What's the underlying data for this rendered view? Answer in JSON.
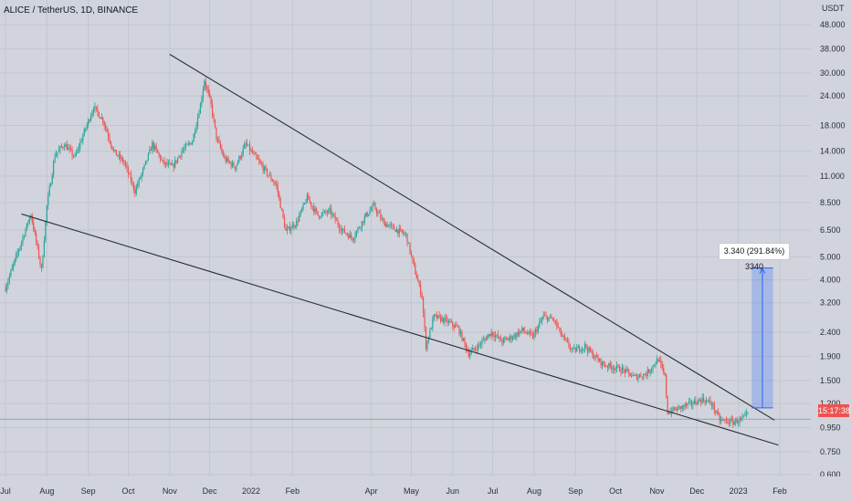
{
  "chart_data": {
    "type": "candlestick",
    "title": "ALICE / TetherUS, 1D, BINANCE",
    "y_unit": "USDT",
    "y_scale": "log",
    "ylim": [
      0.56,
      56
    ],
    "y_ticks": [
      "48.000",
      "38.000",
      "30.000",
      "24.000",
      "18.000",
      "14.000",
      "11.000",
      "8.500",
      "6.500",
      "5.000",
      "4.000",
      "3.200",
      "2.400",
      "1.900",
      "1.500",
      "1.200",
      "0.950",
      "0.750",
      "0.600"
    ],
    "y_tick_values": [
      48,
      38,
      30,
      24,
      18,
      14,
      11,
      8.5,
      6.5,
      5,
      4,
      3.2,
      2.4,
      1.9,
      1.5,
      1.2,
      0.95,
      0.75,
      0.6
    ],
    "x_start": "2021-07-01",
    "x_end": "2023-02-28",
    "x_ticks": [
      "Jul",
      "Aug",
      "Sep",
      "Oct",
      "Nov",
      "Dec",
      "2022",
      "Feb",
      "Apr",
      "May",
      "Jun",
      "Jul",
      "Aug",
      "Sep",
      "Oct",
      "Nov",
      "Dec",
      "2023",
      "Feb"
    ],
    "x_tick_dates": [
      "2021-07-01",
      "2021-08-01",
      "2021-09-01",
      "2021-10-01",
      "2021-11-01",
      "2021-12-01",
      "2022-01-01",
      "2022-02-01",
      "2022-04-01",
      "2022-05-01",
      "2022-06-01",
      "2022-07-01",
      "2022-08-01",
      "2022-09-01",
      "2022-10-01",
      "2022-11-01",
      "2022-12-01",
      "2023-01-01",
      "2023-02-01"
    ],
    "anchors": [
      [
        "2021-07-01",
        3.7
      ],
      [
        "2021-07-10",
        5.2
      ],
      [
        "2021-07-20",
        7.6
      ],
      [
        "2021-07-28",
        4.4
      ],
      [
        "2021-08-01",
        8.2
      ],
      [
        "2021-08-07",
        13.5
      ],
      [
        "2021-08-14",
        15.0
      ],
      [
        "2021-08-22",
        13.2
      ],
      [
        "2021-08-30",
        17.5
      ],
      [
        "2021-09-05",
        21.5
      ],
      [
        "2021-09-12",
        19.0
      ],
      [
        "2021-09-20",
        14.0
      ],
      [
        "2021-09-28",
        12.5
      ],
      [
        "2021-10-06",
        9.5
      ],
      [
        "2021-10-13",
        12.0
      ],
      [
        "2021-10-19",
        15.0
      ],
      [
        "2021-10-27",
        12.5
      ],
      [
        "2021-11-03",
        12.0
      ],
      [
        "2021-11-10",
        14.0
      ],
      [
        "2021-11-18",
        15.5
      ],
      [
        "2021-11-24",
        22.0
      ],
      [
        "2021-11-27",
        28.0
      ],
      [
        "2021-12-02",
        22.0
      ],
      [
        "2021-12-06",
        16.0
      ],
      [
        "2021-12-12",
        13.0
      ],
      [
        "2021-12-20",
        12.0
      ],
      [
        "2021-12-28",
        15.0
      ],
      [
        "2022-01-05",
        13.0
      ],
      [
        "2022-01-12",
        11.5
      ],
      [
        "2022-01-20",
        10.0
      ],
      [
        "2022-01-27",
        6.4
      ],
      [
        "2022-02-04",
        7.0
      ],
      [
        "2022-02-12",
        8.9
      ],
      [
        "2022-02-20",
        7.5
      ],
      [
        "2022-03-01",
        7.8
      ],
      [
        "2022-03-10",
        6.5
      ],
      [
        "2022-03-18",
        6.0
      ],
      [
        "2022-03-28",
        7.5
      ],
      [
        "2022-04-03",
        8.2
      ],
      [
        "2022-04-10",
        7.0
      ],
      [
        "2022-04-18",
        6.6
      ],
      [
        "2022-04-27",
        6.2
      ],
      [
        "2022-05-04",
        4.3
      ],
      [
        "2022-05-09",
        3.4
      ],
      [
        "2022-05-12",
        2.1
      ],
      [
        "2022-05-18",
        2.8
      ],
      [
        "2022-05-26",
        2.7
      ],
      [
        "2022-06-05",
        2.5
      ],
      [
        "2022-06-13",
        1.95
      ],
      [
        "2022-06-20",
        2.1
      ],
      [
        "2022-06-30",
        2.4
      ],
      [
        "2022-07-08",
        2.2
      ],
      [
        "2022-07-16",
        2.3
      ],
      [
        "2022-07-23",
        2.45
      ],
      [
        "2022-07-31",
        2.3
      ],
      [
        "2022-08-08",
        2.8
      ],
      [
        "2022-08-16",
        2.7
      ],
      [
        "2022-08-22",
        2.3
      ],
      [
        "2022-08-30",
        2.0
      ],
      [
        "2022-09-08",
        2.1
      ],
      [
        "2022-09-15",
        1.9
      ],
      [
        "2022-09-22",
        1.75
      ],
      [
        "2022-10-01",
        1.7
      ],
      [
        "2022-10-08",
        1.65
      ],
      [
        "2022-10-15",
        1.55
      ],
      [
        "2022-10-24",
        1.6
      ],
      [
        "2022-11-02",
        1.85
      ],
      [
        "2022-11-07",
        1.55
      ],
      [
        "2022-11-09",
        1.1
      ],
      [
        "2022-11-18",
        1.15
      ],
      [
        "2022-11-27",
        1.2
      ],
      [
        "2022-12-05",
        1.25
      ],
      [
        "2022-12-12",
        1.2
      ],
      [
        "2022-12-18",
        1.02
      ],
      [
        "2022-12-28",
        1.0
      ],
      [
        "2023-01-04",
        1.03
      ],
      [
        "2023-01-08",
        1.08
      ]
    ],
    "trendlines": [
      {
        "from": [
          "2021-11-01",
          36.0
        ],
        "to": [
          "2023-01-28",
          1.02
        ]
      },
      {
        "from": [
          "2021-07-13",
          7.6
        ],
        "to": [
          "2023-01-31",
          0.8
        ]
      }
    ],
    "measure": {
      "label": "3.340 (291.84%) 3340",
      "from_date": "2023-01-11",
      "to_date": "2023-01-27",
      "low": 1.15,
      "high": 4.49,
      "color": "#2962ff"
    },
    "last_price_label": "15:17:38",
    "up_color": "#26a69a",
    "down_color": "#ef5350",
    "grid": true
  }
}
